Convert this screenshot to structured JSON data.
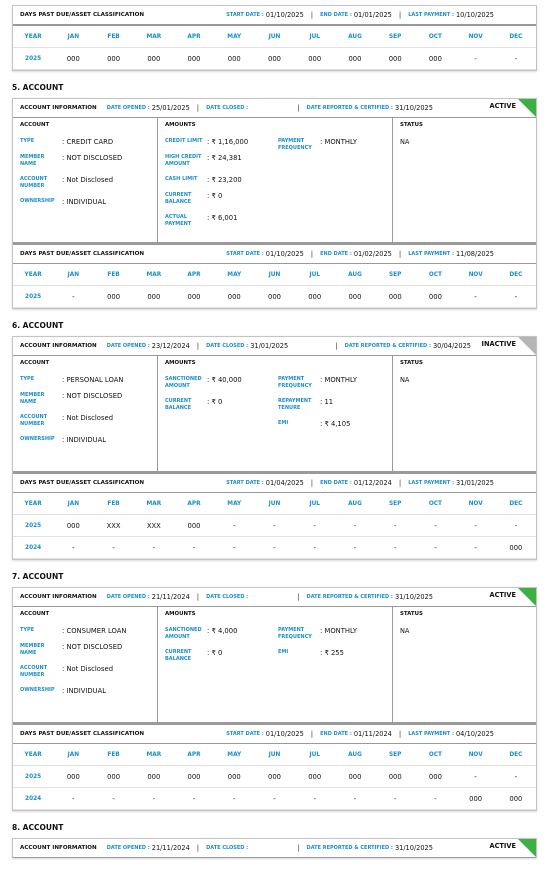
{
  "labels": {
    "dpd_title": "DAYS PAST DUE/ASSET CLASSIFICATION",
    "start_date": "START DATE :",
    "end_date": "END DATE :",
    "last_payment": "LAST PAYMENT :",
    "months": [
      "YEAR",
      "JAN",
      "FEB",
      "MAR",
      "APR",
      "MAY",
      "JUN",
      "JUL",
      "AUG",
      "SEP",
      "OCT",
      "NOV",
      "DEC"
    ],
    "account_information": "ACCOUNT INFORMATION",
    "date_opened": "DATE OPENED :",
    "date_closed": "DATE CLOSED :",
    "date_reported": "DATE REPORTED & CERTIFIED :",
    "account": "ACCOUNT",
    "amounts": "AMOUNTS",
    "status": "STATUS",
    "type": "TYPE",
    "member_name": "MEMBER NAME",
    "account_number": "ACCOUNT NUMBER",
    "ownership": "OWNERSHIP"
  },
  "top_dpd": {
    "start_date": "01/10/2025",
    "end_date": "01/01/2025",
    "last_payment": "10/10/2025",
    "rows": [
      {
        "year": "2025",
        "values": [
          "000",
          "000",
          "000",
          "000",
          "000",
          "000",
          "000",
          "000",
          "000",
          "000",
          "-",
          "-"
        ]
      }
    ]
  },
  "accounts": [
    {
      "heading": "5. ACCOUNT",
      "status_badge": "ACTIVE",
      "badge_color": "#3cb043",
      "date_opened": "25/01/2025",
      "date_reported": "31/10/2025",
      "account": {
        "type": "CREDIT CARD",
        "member_name": "NOT DISCLOSED",
        "account_number": "Not Disclosed",
        "ownership": "INDIVIDUAL"
      },
      "amounts_left": [
        {
          "label": "CREDIT LIMIT",
          "value": "₹ 1,16,000"
        },
        {
          "label": "HIGH CREDIT AMOUNT",
          "value": "₹ 24,381"
        },
        {
          "label": "CASH LIMIT",
          "value": "₹ 23,200"
        },
        {
          "label": "CURRENT BALANCE",
          "value": "₹ 0"
        },
        {
          "label": "ACTUAL PAYMENT",
          "value": "₹ 6,001"
        }
      ],
      "amounts_right": [
        {
          "label": "PAYMENT FREQUENCY",
          "value": "MONTHLY"
        }
      ],
      "status": "NA",
      "dpd": {
        "start_date": "01/10/2025",
        "end_date": "01/02/2025",
        "last_payment": "11/08/2025",
        "rows": [
          {
            "year": "2025",
            "values": [
              "-",
              "000",
              "000",
              "000",
              "000",
              "000",
              "000",
              "000",
              "000",
              "000",
              "-",
              "-"
            ]
          }
        ]
      }
    },
    {
      "heading": "6. ACCOUNT",
      "status_badge": "INACTIVE",
      "badge_color": "#b5b5b5",
      "date_opened": "23/12/2024",
      "date_closed": "31/01/2025",
      "date_reported": "30/04/2025",
      "account": {
        "type": "PERSONAL LOAN",
        "member_name": "NOT DISCLOSED",
        "account_number": "Not Disclosed",
        "ownership": "INDIVIDUAL"
      },
      "amounts_left": [
        {
          "label": "SANCTIONED AMOUNT",
          "value": "₹ 40,000"
        },
        {
          "label": "CURRENT BALANCE",
          "value": "₹ 0"
        }
      ],
      "amounts_right": [
        {
          "label": "PAYMENT FREQUENCY",
          "value": "MONTHLY"
        },
        {
          "label": "REPAYMENT TENURE",
          "value": "11"
        },
        {
          "label": "EMI",
          "value": "₹ 4,105"
        }
      ],
      "status": "NA",
      "dpd": {
        "start_date": "01/04/2025",
        "end_date": "01/12/2024",
        "last_payment": "31/01/2025",
        "rows": [
          {
            "year": "2025",
            "values": [
              "000",
              "XXX",
              "XXX",
              "000",
              "-",
              "-",
              "-",
              "-",
              "-",
              "-",
              "-",
              "-"
            ]
          },
          {
            "year": "2024",
            "values": [
              "-",
              "-",
              "-",
              "-",
              "-",
              "-",
              "-",
              "-",
              "-",
              "-",
              "-",
              "000"
            ]
          }
        ]
      }
    },
    {
      "heading": "7. ACCOUNT",
      "status_badge": "ACTIVE",
      "badge_color": "#3cb043",
      "date_opened": "21/11/2024",
      "date_reported": "31/10/2025",
      "account": {
        "type": "CONSUMER LOAN",
        "member_name": "NOT DISCLOSED",
        "account_number": "Not Disclosed",
        "ownership": "INDIVIDUAL"
      },
      "amounts_left": [
        {
          "label": "SANCTIONED AMOUNT",
          "value": "₹ 4,000"
        },
        {
          "label": "CURRENT BALANCE",
          "value": "₹ 0"
        }
      ],
      "amounts_right": [
        {
          "label": "PAYMENT FREQUENCY",
          "value": "MONTHLY"
        },
        {
          "label": "EMI",
          "value": "₹ 255"
        }
      ],
      "status": "NA",
      "dpd": {
        "start_date": "01/10/2025",
        "end_date": "01/11/2024",
        "last_payment": "04/10/2025",
        "rows": [
          {
            "year": "2025",
            "values": [
              "000",
              "000",
              "000",
              "000",
              "000",
              "000",
              "000",
              "000",
              "000",
              "000",
              "-",
              "-"
            ]
          },
          {
            "year": "2024",
            "values": [
              "-",
              "-",
              "-",
              "-",
              "-",
              "-",
              "-",
              "-",
              "-",
              "-",
              "000",
              "000"
            ]
          }
        ]
      }
    },
    {
      "heading": "8. ACCOUNT",
      "status_badge": "ACTIVE",
      "badge_color": "#3cb043",
      "date_opened": "21/11/2024",
      "date_reported": "31/10/2025"
    }
  ]
}
